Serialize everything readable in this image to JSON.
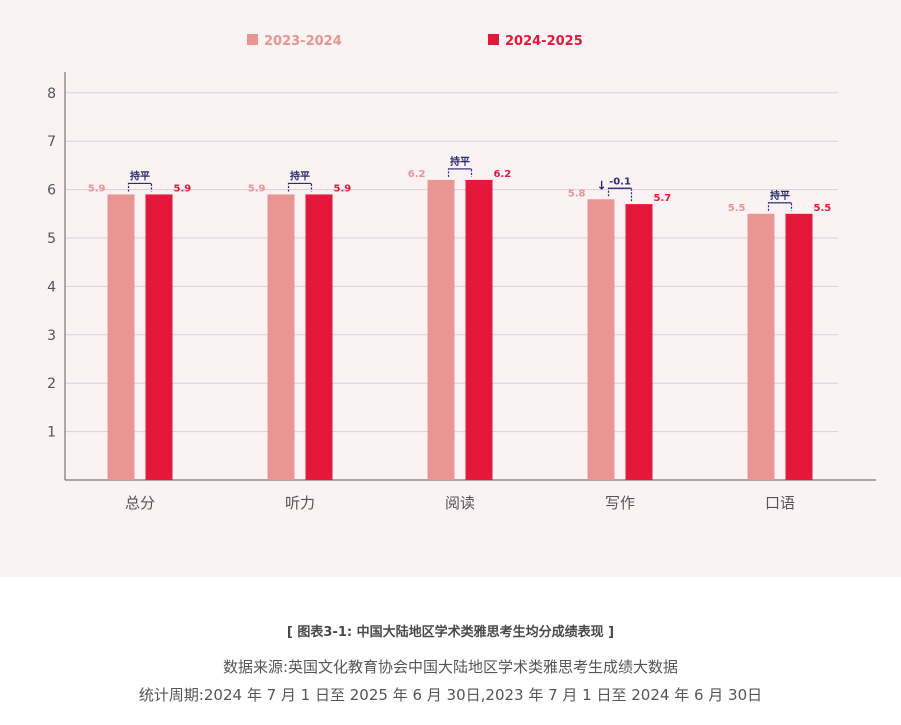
{
  "chart_data": {
    "type": "bar",
    "categories": [
      "总分",
      "听力",
      "阅读",
      "写作",
      "口语"
    ],
    "series": [
      {
        "name": "2023-2024",
        "values": [
          5.9,
          5.9,
          6.2,
          5.8,
          5.5
        ],
        "color": "#e99592"
      },
      {
        "name": "2024-2025",
        "values": [
          5.9,
          5.9,
          6.2,
          5.7,
          5.5
        ],
        "color": "#e4183a"
      }
    ],
    "changes": [
      {
        "label": "持平",
        "arrow": ""
      },
      {
        "label": "持平",
        "arrow": ""
      },
      {
        "label": "持平",
        "arrow": ""
      },
      {
        "label": "-0.1",
        "arrow": "↓"
      },
      {
        "label": "持平",
        "arrow": ""
      }
    ],
    "y_ticks": [
      1,
      2,
      3,
      4,
      5,
      6,
      7,
      8
    ],
    "ylim": [
      0,
      8
    ],
    "grid": true,
    "legend_position": "top",
    "annotation_color": "#2b2e6e"
  },
  "caption": {
    "title": "[ 图表3-1:  中国大陆地区学术类雅思考生均分成绩表现 ]",
    "source": "数据来源:英国文化教育协会中国大陆地区学术类雅思考生成绩大数据",
    "period": "统计周期:2024 年 7 月 1 日至 2025 年 6 月 30日,2023 年 7 月 1 日至 2024 年 6 月 30日"
  }
}
